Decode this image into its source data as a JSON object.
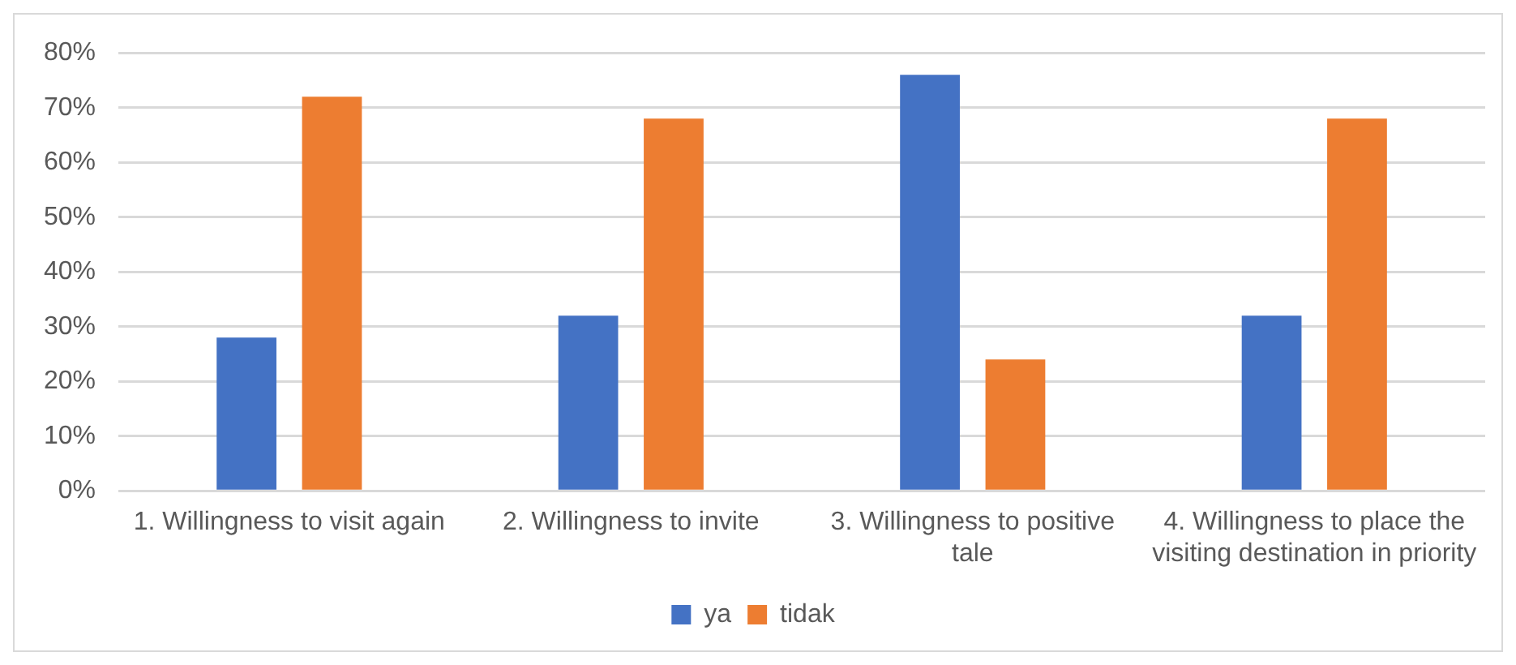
{
  "chart_data": {
    "type": "bar",
    "categories": [
      "1. Willingness to visit again",
      "2. Willingness to invite",
      "3. Willingness to positive tale",
      "4. Willingness to place the visiting destination in priority"
    ],
    "series": [
      {
        "name": "ya",
        "color": "#4472c4",
        "values": [
          28,
          32,
          76,
          32
        ]
      },
      {
        "name": "tidak",
        "color": "#ed7d31",
        "values": [
          72,
          68,
          24,
          68
        ]
      }
    ],
    "ylim": [
      0,
      80
    ],
    "yticks": [
      {
        "value": 0,
        "label": "0%"
      },
      {
        "value": 10,
        "label": "10%"
      },
      {
        "value": 20,
        "label": "20%"
      },
      {
        "value": 30,
        "label": "30%"
      },
      {
        "value": 40,
        "label": "40%"
      },
      {
        "value": 50,
        "label": "50%"
      },
      {
        "value": 60,
        "label": "60%"
      },
      {
        "value": 70,
        "label": "70%"
      },
      {
        "value": 80,
        "label": "80%"
      }
    ],
    "grid": "y",
    "legend": "bottom"
  }
}
